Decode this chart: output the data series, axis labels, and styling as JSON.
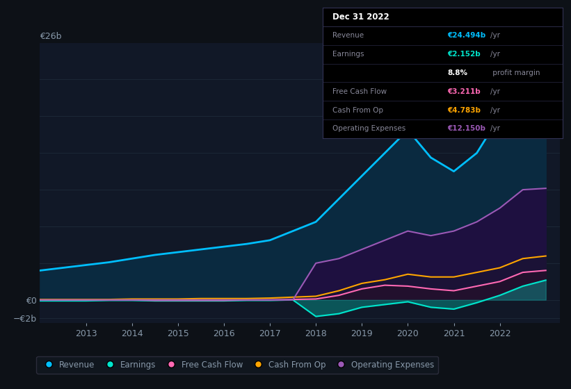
{
  "bg_color": "#0d1117",
  "plot_bg_color": "#111827",
  "grid_color": "#1e2a3a",
  "text_color": "#8899aa",
  "years": [
    2012.0,
    2012.5,
    2013.0,
    2013.5,
    2014.0,
    2014.5,
    2015.0,
    2015.5,
    2016.0,
    2016.5,
    2017.0,
    2017.5,
    2018.0,
    2018.5,
    2019.0,
    2019.5,
    2020.0,
    2020.5,
    2021.0,
    2021.5,
    2022.0,
    2022.5,
    2023.0
  ],
  "revenue": [
    3.2,
    3.5,
    3.8,
    4.1,
    4.5,
    4.9,
    5.2,
    5.5,
    5.8,
    6.1,
    6.5,
    7.5,
    8.5,
    11.0,
    13.5,
    16.0,
    18.5,
    15.5,
    14.0,
    16.0,
    20.0,
    24.0,
    24.5
  ],
  "operating_expenses": [
    0.0,
    0.0,
    0.0,
    0.0,
    0.0,
    0.0,
    0.0,
    0.0,
    0.0,
    0.0,
    0.0,
    0.0,
    4.0,
    4.5,
    5.5,
    6.5,
    7.5,
    7.0,
    7.5,
    8.5,
    10.0,
    12.0,
    12.15
  ],
  "cash_from_op": [
    0.05,
    0.05,
    0.05,
    0.05,
    0.1,
    0.1,
    0.1,
    0.15,
    0.15,
    0.15,
    0.2,
    0.3,
    0.4,
    1.0,
    1.8,
    2.2,
    2.8,
    2.5,
    2.5,
    3.0,
    3.5,
    4.5,
    4.783
  ],
  "free_cash_flow": [
    0.0,
    0.0,
    0.0,
    0.0,
    0.0,
    -0.05,
    -0.05,
    -0.05,
    -0.05,
    0.0,
    0.0,
    0.05,
    0.1,
    0.5,
    1.2,
    1.6,
    1.5,
    1.2,
    1.0,
    1.5,
    2.0,
    3.0,
    3.211
  ],
  "earnings": [
    -0.1,
    -0.1,
    -0.1,
    -0.05,
    -0.05,
    -0.1,
    -0.1,
    -0.1,
    -0.1,
    -0.05,
    -0.05,
    0.0,
    -1.8,
    -1.5,
    -0.8,
    -0.5,
    -0.2,
    -0.8,
    -1.0,
    -0.3,
    0.5,
    1.5,
    2.152
  ],
  "revenue_color": "#00bfff",
  "earnings_color": "#00e5cc",
  "fcf_color": "#ff69b4",
  "cashop_color": "#ffa500",
  "opex_color": "#9b59b6",
  "ylim_min": -2.5,
  "ylim_max": 28,
  "xlabel_ticks": [
    2013,
    2014,
    2015,
    2016,
    2017,
    2018,
    2019,
    2020,
    2021,
    2022
  ],
  "legend_items": [
    {
      "label": "Revenue",
      "color": "#00bfff"
    },
    {
      "label": "Earnings",
      "color": "#00e5cc"
    },
    {
      "label": "Free Cash Flow",
      "color": "#ff69b4"
    },
    {
      "label": "Cash From Op",
      "color": "#ffa500"
    },
    {
      "label": "Operating Expenses",
      "color": "#9b59b6"
    }
  ],
  "tooltip": {
    "title": "Dec 31 2022",
    "rows": [
      {
        "label": "Revenue",
        "value": "€24.494b",
        "unit": "/yr",
        "value_color": "#00bfff",
        "label_color": "#888899"
      },
      {
        "label": "Earnings",
        "value": "€2.152b",
        "unit": "/yr",
        "value_color": "#00e5cc",
        "label_color": "#888899"
      },
      {
        "label": "",
        "value": "8.8%",
        "unit": " profit margin",
        "value_color": "#ffffff",
        "label_color": "#888899"
      },
      {
        "label": "Free Cash Flow",
        "value": "€3.211b",
        "unit": "/yr",
        "value_color": "#ff69b4",
        "label_color": "#888899"
      },
      {
        "label": "Cash From Op",
        "value": "€4.783b",
        "unit": "/yr",
        "value_color": "#ffa500",
        "label_color": "#888899"
      },
      {
        "label": "Operating Expenses",
        "value": "€12.150b",
        "unit": "/yr",
        "value_color": "#9b59b6",
        "label_color": "#888899"
      }
    ]
  }
}
